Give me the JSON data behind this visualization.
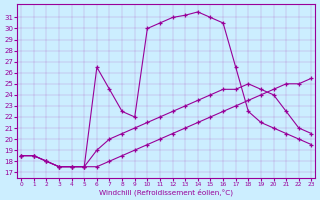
{
  "xlabel": "Windchill (Refroidissement éolien,°C)",
  "bg_color": "#cceeff",
  "line_color": "#990099",
  "x_ticks": [
    0,
    1,
    2,
    3,
    4,
    5,
    6,
    7,
    8,
    9,
    10,
    11,
    12,
    13,
    14,
    15,
    16,
    17,
    18,
    19,
    20,
    21,
    22,
    23
  ],
  "y_ticks": [
    17,
    18,
    19,
    20,
    21,
    22,
    23,
    24,
    25,
    26,
    27,
    28,
    29,
    30,
    31
  ],
  "ylim": [
    16.5,
    32.2
  ],
  "xlim": [
    -0.3,
    23.3
  ],
  "curve_top_x": [
    0,
    1,
    2,
    3,
    4,
    5,
    6,
    7,
    8,
    9,
    10,
    11,
    12,
    13,
    14,
    15,
    16,
    17,
    18,
    19,
    20,
    21,
    22,
    23
  ],
  "curve_top_y": [
    18.5,
    18.5,
    18.0,
    17.5,
    17.5,
    17.5,
    26.5,
    24.5,
    22.5,
    22.0,
    30.0,
    30.5,
    31.0,
    31.2,
    31.5,
    31.0,
    30.5,
    26.5,
    22.5,
    21.5,
    21.0,
    20.5,
    20.0,
    19.5
  ],
  "curve_mid_x": [
    0,
    1,
    2,
    3,
    4,
    5,
    6,
    7,
    8,
    9,
    10,
    11,
    12,
    13,
    14,
    15,
    16,
    17,
    18,
    19,
    20,
    21,
    22,
    23
  ],
  "curve_mid_y": [
    18.5,
    18.5,
    18.0,
    17.5,
    17.5,
    17.5,
    19.0,
    20.0,
    20.5,
    21.0,
    21.5,
    22.0,
    22.5,
    23.0,
    23.5,
    24.0,
    24.5,
    24.5,
    25.0,
    24.5,
    24.0,
    22.5,
    21.0,
    20.5
  ],
  "curve_bot_x": [
    0,
    1,
    2,
    3,
    4,
    5,
    6,
    7,
    8,
    9,
    10,
    11,
    12,
    13,
    14,
    15,
    16,
    17,
    18,
    19,
    20,
    21,
    22,
    23
  ],
  "curve_bot_y": [
    18.5,
    18.5,
    18.0,
    17.5,
    17.5,
    17.5,
    17.5,
    18.0,
    18.5,
    19.0,
    19.5,
    20.0,
    20.5,
    21.0,
    21.5,
    22.0,
    22.5,
    23.0,
    23.5,
    24.0,
    24.5,
    25.0,
    25.0,
    25.5
  ]
}
